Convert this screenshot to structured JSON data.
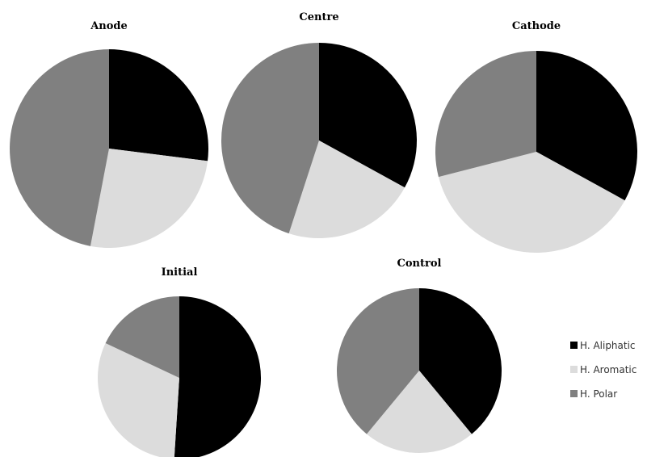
{
  "legend": {
    "placement": "right",
    "items": [
      {
        "label": "H. Aliphatic",
        "color": "#000000"
      },
      {
        "label": "H. Aromatic",
        "color": "#dcdcdc"
      },
      {
        "label": "H. Polar",
        "color": "#808080"
      }
    ]
  },
  "chart_data": [
    {
      "type": "pie",
      "title": "Anode",
      "labels": [
        "H. Aliphatic",
        "H. Aromatic",
        "H. Polar"
      ],
      "values": [
        27,
        26,
        47
      ],
      "colors": [
        "#000000",
        "#dcdcdc",
        "#808080"
      ]
    },
    {
      "type": "pie",
      "title": "Centre",
      "labels": [
        "H. Aliphatic",
        "H. Aromatic",
        "H. Polar"
      ],
      "values": [
        33,
        22,
        45
      ],
      "colors": [
        "#000000",
        "#dcdcdc",
        "#808080"
      ]
    },
    {
      "type": "pie",
      "title": "Cathode",
      "labels": [
        "H. Aliphatic",
        "H. Aromatic",
        "H. Polar"
      ],
      "values": [
        33,
        38,
        29
      ],
      "colors": [
        "#000000",
        "#dcdcdc",
        "#808080"
      ]
    },
    {
      "type": "pie",
      "title": "Initial",
      "labels": [
        "H. Aliphatic",
        "H. Aromatic",
        "H. Polar"
      ],
      "values": [
        51,
        31,
        18
      ],
      "colors": [
        "#000000",
        "#dcdcdc",
        "#808080"
      ]
    },
    {
      "type": "pie",
      "title": "Control",
      "labels": [
        "H. Aliphatic",
        "H. Aromatic",
        "H. Polar"
      ],
      "values": [
        39,
        22,
        39
      ],
      "colors": [
        "#000000",
        "#dcdcdc",
        "#808080"
      ]
    }
  ]
}
